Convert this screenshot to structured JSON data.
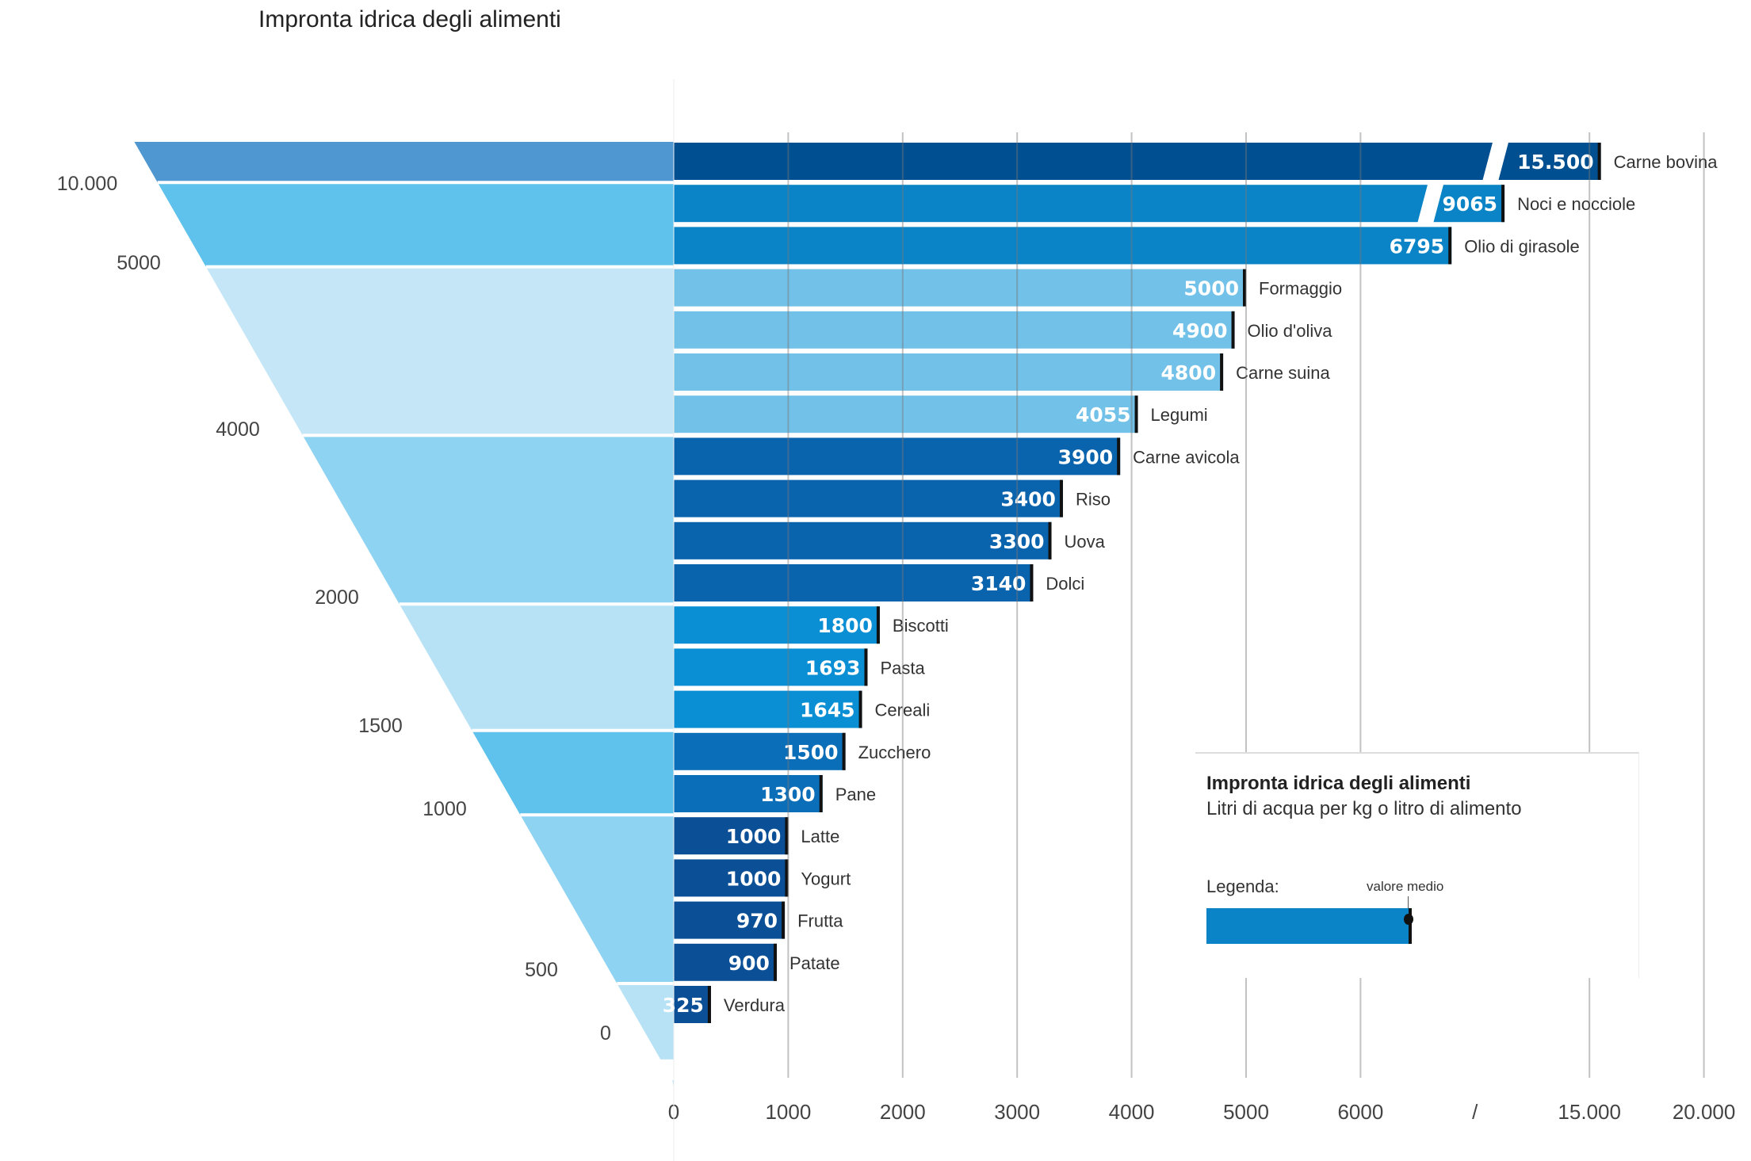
{
  "title": "Impronta idrica degli alimenti",
  "legend": {
    "title": "Impronta idrica degli alimenti",
    "subtitle": "Litri di acqua per kg o litro di alimento",
    "label": "Legenda:",
    "marker_label": "valore medio",
    "color": "#0a84c6"
  },
  "chart_data": {
    "type": "bar",
    "orientation": "horizontal",
    "title": "Impronta idrica degli alimenti",
    "unit": "Litri di acqua per kg o litro di alimento",
    "x_ticks": [
      "0",
      "1000",
      "2000",
      "3000",
      "4000",
      "5000",
      "6000",
      "/",
      "15.000",
      "20.000"
    ],
    "x_axis_break": "between 6000 and 15.000",
    "xlim": [
      0,
      20000
    ],
    "grid": true,
    "categories": [
      "Carne bovina",
      "Noci e nocciole",
      "Olio di girasole",
      "Formaggio",
      "Olio d'oliva",
      "Carne suina",
      "Legumi",
      "Carne avicola",
      "Riso",
      "Uova",
      "Dolci",
      "Biscotti",
      "Pasta",
      "Cereali",
      "Zucchero",
      "Pane",
      "Latte",
      "Yogurt",
      "Frutta",
      "Patate",
      "Verdura"
    ],
    "values": [
      15500,
      9065,
      6795,
      5000,
      4900,
      4800,
      4055,
      3900,
      3400,
      3300,
      3140,
      1800,
      1693,
      1645,
      1500,
      1300,
      1000,
      1000,
      970,
      900,
      325
    ],
    "value_labels": [
      "15.500",
      "9065",
      "6795",
      "5000",
      "4900",
      "4800",
      "4055",
      "3900",
      "3400",
      "3300",
      "3140",
      "1800",
      "1693",
      "1645",
      "1500",
      "1300",
      "1000",
      "1000",
      "970",
      "900",
      "325"
    ],
    "colors": [
      "#004f91",
      "#0a84c6",
      "#0a84c6",
      "#72c1e8",
      "#72c1e8",
      "#72c1e8",
      "#72c1e8",
      "#0a63ad",
      "#0a63ad",
      "#0a63ad",
      "#0a63ad",
      "#0a8fd4",
      "#0a8fd4",
      "#0a8fd4",
      "#0a6eb8",
      "#0a6eb8",
      "#0b4f96",
      "#0b4f96",
      "#0b4f96",
      "#0b4f96",
      "#0b4f96"
    ],
    "pyramid_scale_labels": [
      "10.000",
      "5000",
      "4000",
      "2000",
      "1500",
      "1000",
      "500",
      "0"
    ]
  }
}
